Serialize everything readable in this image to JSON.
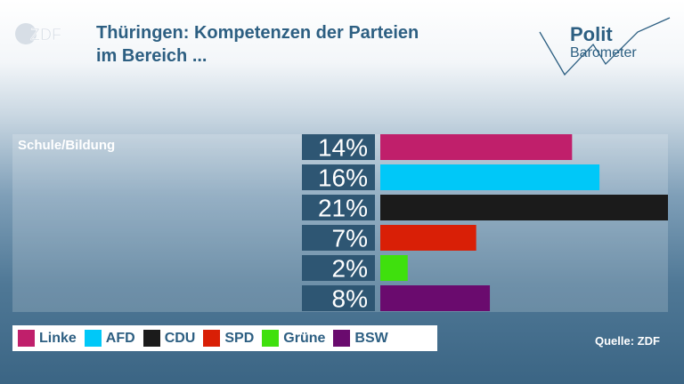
{
  "header": {
    "logo_text": "ZDF",
    "title_line1": "Thüringen: Kompetenzen der Parteien",
    "title_line2": "im Bereich ...",
    "brand_line1": "Polit",
    "brand_line2": "Barometer"
  },
  "chart_data": {
    "type": "bar",
    "orientation": "horizontal",
    "category": "Schule/Bildung",
    "categories": [
      "Linke",
      "AFD",
      "CDU",
      "SPD",
      "Grüne",
      "BSW"
    ],
    "values": [
      14,
      16,
      21,
      7,
      2,
      8
    ],
    "value_labels": [
      "14%",
      "16%",
      "21%",
      "7%",
      "2%",
      "8%"
    ],
    "colors": [
      "#c01f6b",
      "#00c8f8",
      "#1b1b1b",
      "#d91f06",
      "#3fe00d",
      "#6a0b6e"
    ],
    "xlim": [
      0,
      21
    ],
    "unit": "%",
    "legend_position": "bottom-left"
  },
  "footer": {
    "source": "Quelle: ZDF"
  }
}
